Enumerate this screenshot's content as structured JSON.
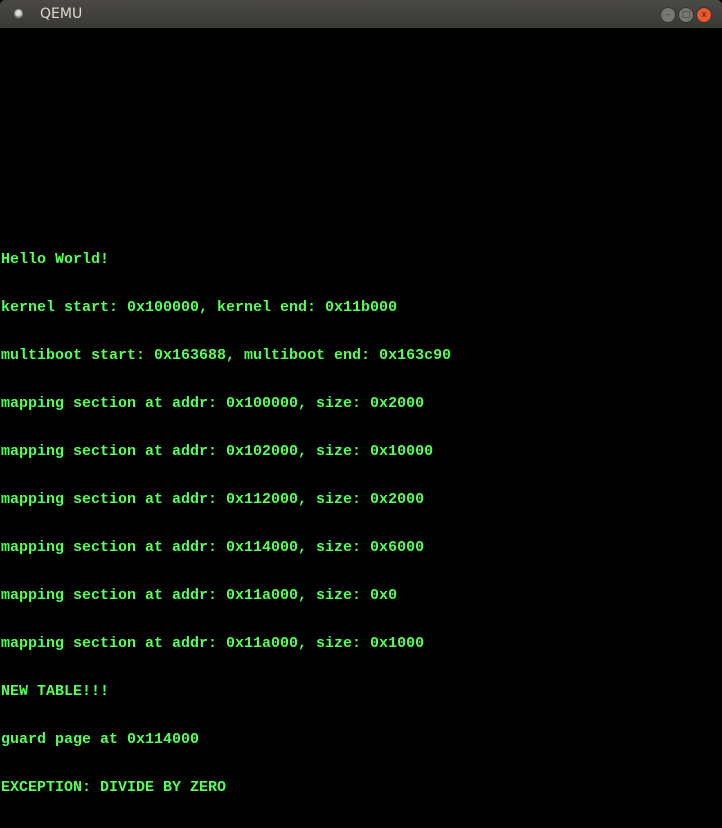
{
  "window": {
    "title": "QEMU",
    "minimize_label": "–",
    "maximize_label": "□",
    "close_label": "x"
  },
  "console": {
    "text_color": "#55ff55",
    "lines": [
      "Hello World!",
      "kernel start: 0x100000, kernel end: 0x11b000",
      "multiboot start: 0x163688, multiboot end: 0x163c90",
      "mapping section at addr: 0x100000, size: 0x2000",
      "mapping section at addr: 0x102000, size: 0x10000",
      "mapping section at addr: 0x112000, size: 0x2000",
      "mapping section at addr: 0x114000, size: 0x6000",
      "mapping section at addr: 0x11a000, size: 0x0",
      "mapping section at addr: 0x11a000, size: 0x1000",
      "NEW TABLE!!!",
      "guard page at 0x114000",
      "EXCEPTION: DIVIDE BY ZERO"
    ]
  }
}
